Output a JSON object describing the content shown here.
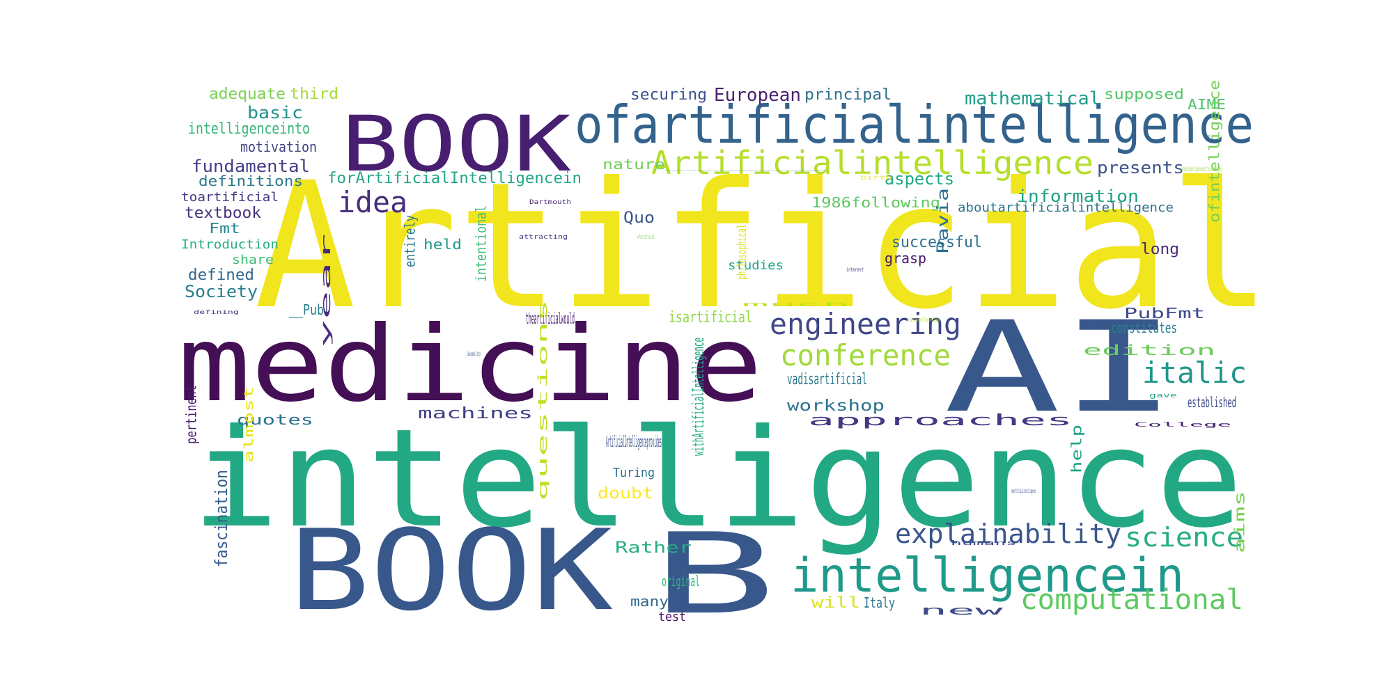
{
  "words": [
    {
      "text": "Artificial",
      "color": "#f1e51d"
    },
    {
      "text": "intelligence",
      "color": "#23a884"
    },
    {
      "text": "medicine",
      "color": "#440f55"
    },
    {
      "text": "BOOK",
      "color": "#481f70"
    },
    {
      "text": "BOOK",
      "color": "#38588c"
    },
    {
      "text": "AI",
      "color": "#38588c"
    },
    {
      "text": "B",
      "color": "#38588c"
    },
    {
      "text": "ofartificialintelligence",
      "color": "#33638d"
    },
    {
      "text": "Artificialintelligence",
      "color": "#b5de2b"
    },
    {
      "text": "intelligencein",
      "color": "#1f9a8a"
    },
    {
      "text": "engineering",
      "color": "#3f4788"
    },
    {
      "text": "conference",
      "color": "#a0da39"
    },
    {
      "text": "italic",
      "color": "#1f968b"
    },
    {
      "text": "explainability",
      "color": "#39558c"
    },
    {
      "text": "science",
      "color": "#26ad81"
    },
    {
      "text": "computational",
      "color": "#5ec962"
    },
    {
      "text": "idea",
      "color": "#472d7b"
    },
    {
      "text": "European",
      "color": "#482173"
    },
    {
      "text": "mathematical",
      "color": "#1f9e89"
    },
    {
      "text": "principal",
      "color": "#2c728e"
    },
    {
      "text": "securing",
      "color": "#3b528b"
    },
    {
      "text": "supposed",
      "color": "#54c568"
    },
    {
      "text": "AIME",
      "color": "#4ac16d"
    },
    {
      "text": "adequate",
      "color": "#7ad151"
    },
    {
      "text": "third",
      "color": "#a5db36"
    },
    {
      "text": "basic",
      "color": "#21918c"
    },
    {
      "text": "intelligenceinto",
      "color": "#35b779"
    },
    {
      "text": "motivation",
      "color": "#414487"
    },
    {
      "text": "fundamental",
      "color": "#433e85"
    },
    {
      "text": "definitions",
      "color": "#2a788e"
    },
    {
      "text": "forArtificialIntelligencein",
      "color": "#22a785"
    },
    {
      "text": "nature",
      "color": "#70cf57"
    },
    {
      "text": "presents",
      "color": "#3b528b"
    },
    {
      "text": "aspects",
      "color": "#22a884"
    },
    {
      "text": "information",
      "color": "#1fa187"
    },
    {
      "text": "toartificial",
      "color": "#453781"
    },
    {
      "text": "textbook",
      "color": "#46327e"
    },
    {
      "text": "1986following",
      "color": "#5ec962"
    },
    {
      "text": "aboutartificialintelligence",
      "color": "#2c728e"
    },
    {
      "text": "Fmt",
      "color": "#24868e"
    },
    {
      "text": "Quo",
      "color": "#39568c"
    },
    {
      "text": "Introduction",
      "color": "#29af7f"
    },
    {
      "text": "held",
      "color": "#1f988b"
    },
    {
      "text": "successful",
      "color": "#2d708e"
    },
    {
      "text": "long",
      "color": "#482878"
    },
    {
      "text": "share",
      "color": "#3bbb75"
    },
    {
      "text": "grasp",
      "color": "#481668"
    },
    {
      "text": "defined",
      "color": "#31688e"
    },
    {
      "text": "studies",
      "color": "#20a486"
    },
    {
      "text": "Society",
      "color": "#287c8e"
    },
    {
      "text": "Pavia",
      "color": "#2d708e"
    },
    {
      "text": "ofintelligence",
      "color": "#75d054"
    },
    {
      "text": "theartificialwould",
      "color": "#481a6c"
    },
    {
      "text": "isartificial",
      "color": "#8fd744"
    },
    {
      "text": "__PubFmt",
      "color": "#3e4989"
    },
    {
      "text": "constitutes",
      "color": "#27808e"
    },
    {
      "text": "edition",
      "color": "#6ccd5a"
    },
    {
      "text": "vadisartificial",
      "color": "#2a788e"
    },
    {
      "text": "workshop",
      "color": "#2b748e"
    },
    {
      "text": "established",
      "color": "#3e4c8a"
    },
    {
      "text": "quotes",
      "color": "#2c728e"
    },
    {
      "text": "machines",
      "color": "#424086"
    },
    {
      "text": "approaches",
      "color": "#453882"
    },
    {
      "text": "ArtificialIntelligenceprovides",
      "color": "#3b528b"
    },
    {
      "text": "Turing",
      "color": "#2c728e"
    },
    {
      "text": "doubt",
      "color": "#fde725"
    },
    {
      "text": "Rather",
      "color": "#27ad81"
    },
    {
      "text": "original",
      "color": "#2fb47c"
    },
    {
      "text": "many",
      "color": "#31688e"
    },
    {
      "text": "test",
      "color": "#471063"
    },
    {
      "text": "will",
      "color": "#d8e219"
    },
    {
      "text": "Italy",
      "color": "#2a788e"
    },
    {
      "text": "new",
      "color": "#3e4a89"
    },
    {
      "text": "fascination",
      "color": "#365c8d"
    },
    {
      "text": "pertinent",
      "color": "#481c6e"
    },
    {
      "text": "almost",
      "color": "#e2e418"
    },
    {
      "text": "questions",
      "color": "#c0df25"
    },
    {
      "text": "withArtificialIntelligence",
      "color": "#22a884"
    },
    {
      "text": "intentional",
      "color": "#3dbc74"
    },
    {
      "text": "entirely",
      "color": "#2a788e"
    },
    {
      "text": "year",
      "color": "#472c7a"
    },
    {
      "text": "philosophical",
      "color": "#dde318"
    },
    {
      "text": "help",
      "color": "#20a386"
    },
    {
      "text": "aims",
      "color": "#7ad151"
    },
    {
      "text": "__Pub",
      "color": "#287d8e"
    },
    {
      "text": "___",
      "color": "#31688e"
    },
    {
      "text": "surroundingintelligenceandartificialintelligence",
      "color": "#9bd93c"
    },
    {
      "text": "Dartmouth",
      "color": "#482576"
    },
    {
      "text": "attracting",
      "color": "#46307e"
    },
    {
      "text": "ofartificial",
      "color": "#7ad151"
    },
    {
      "text": "birth",
      "color": "#fde725"
    },
    {
      "text": "interest",
      "color": "#433e85"
    },
    {
      "text": "much",
      "color": "#c2df23"
    },
    {
      "text": "Explainableartificialintelligence",
      "color": "#b8de29"
    },
    {
      "text": "defining",
      "color": "#46337f"
    },
    {
      "text": "Causability",
      "color": "#3b528b"
    },
    {
      "text": "gave",
      "color": "#20a386"
    },
    {
      "text": "College",
      "color": "#482475"
    },
    {
      "text": "onartificialintelligence",
      "color": "#3a548c"
    },
    {
      "text": "humans",
      "color": "#3e4989"
    },
    {
      "text": "makingintelligent",
      "color": "#1f9e89"
    }
  ]
}
